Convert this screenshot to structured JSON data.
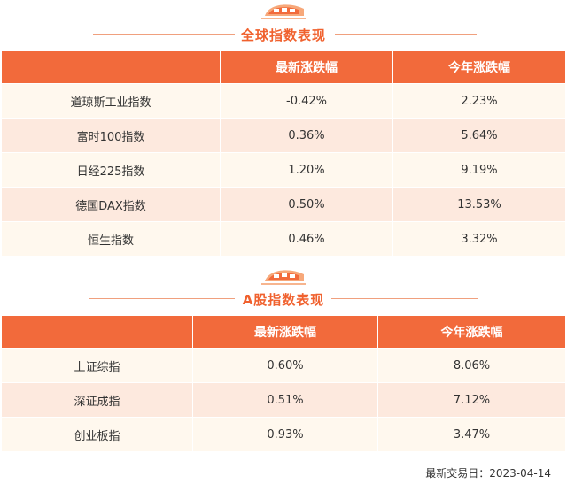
{
  "colors": {
    "accent": "#f26a3b",
    "title": "#f0612e",
    "row_light": "#fff8ee",
    "row_dark": "#fde9de",
    "up": "#e0333c",
    "down": "#3a8f2c"
  },
  "global_section": {
    "icon": "train-icon",
    "title": "全球指数表现",
    "headers": [
      "",
      "最新涨跌幅",
      "今年涨跌幅"
    ],
    "rows": [
      {
        "name": "道琼斯工业指数",
        "latest": "-0.42%",
        "ytd": "2.23%",
        "latest_dir": "down"
      },
      {
        "name": "富时100指数",
        "latest": "0.36%",
        "ytd": "5.64%",
        "latest_dir": "up"
      },
      {
        "name": "日经225指数",
        "latest": "1.20%",
        "ytd": "9.19%",
        "latest_dir": "up"
      },
      {
        "name": "德国DAX指数",
        "latest": "0.50%",
        "ytd": "13.53%",
        "latest_dir": "up"
      },
      {
        "name": "恒生指数",
        "latest": "0.46%",
        "ytd": "3.32%",
        "latest_dir": "up"
      }
    ]
  },
  "a_share_section": {
    "icon": "train-icon",
    "title": "A股指数表现",
    "headers": [
      "",
      "最新涨跌幅",
      "今年涨跌幅"
    ],
    "rows": [
      {
        "name": "上证综指",
        "latest": "0.60%",
        "ytd": "8.06%",
        "latest_dir": "up"
      },
      {
        "name": "深证成指",
        "latest": "0.51%",
        "ytd": "7.12%",
        "latest_dir": "up"
      },
      {
        "name": "创业板指",
        "latest": "0.93%",
        "ytd": "3.47%",
        "latest_dir": "up"
      }
    ]
  },
  "footer": {
    "last_trade_date": "最新交易日：2023-04-14"
  }
}
